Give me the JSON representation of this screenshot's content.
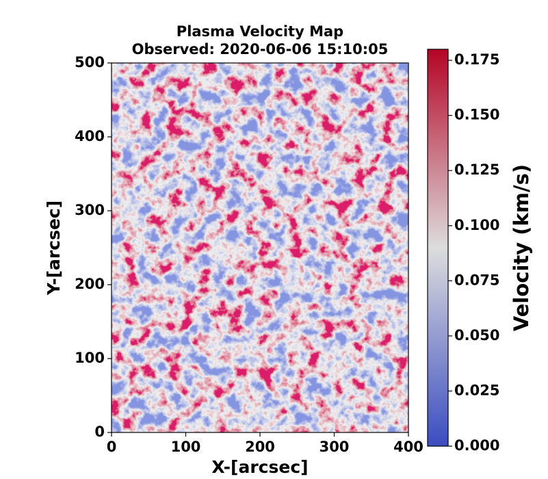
{
  "chart_data": {
    "type": "heatmap",
    "title": "Plasma Velocity Map",
    "subtitle": "Observed: 2020-06-06 15:10:05",
    "x_label": "X-[arcsec]",
    "y_label": "Y-[arcsec]",
    "xlim": [
      0,
      400
    ],
    "ylim": [
      0,
      500
    ],
    "xticks": [
      0,
      100,
      200,
      300,
      400
    ],
    "yticks": [
      0,
      100,
      200,
      300,
      400,
      500
    ],
    "colorbar_label": "Velocity (km/s)",
    "colormap": [
      "#3b4cc0",
      "#dddddd",
      "#b40426"
    ],
    "clim": [
      0,
      0.18
    ],
    "colorbar_ticks": [
      {
        "value": 0,
        "label": "0.000"
      },
      {
        "value": 0.025,
        "label": "0.025"
      },
      {
        "value": 0.05,
        "label": "0.050"
      },
      {
        "value": 0.075,
        "label": "0.075"
      },
      {
        "value": 0.1,
        "label": "0.100"
      },
      {
        "value": 0.125,
        "label": "0.125"
      },
      {
        "value": 0.15,
        "label": "0.150"
      },
      {
        "value": 0.175,
        "label": "0.175"
      }
    ]
  }
}
